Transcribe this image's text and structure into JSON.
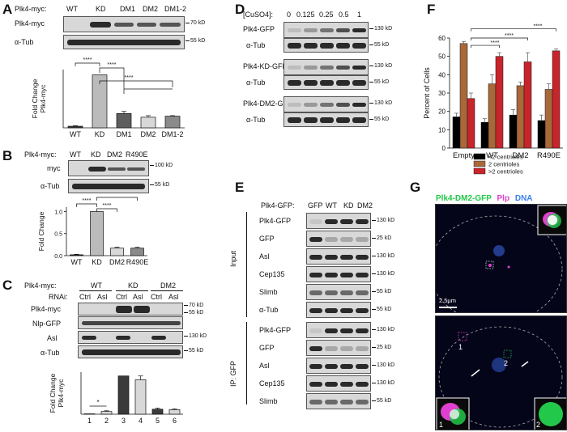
{
  "panelA": {
    "letter": "A",
    "header": "Plk4-myc:",
    "lanes": [
      "WT",
      "KD",
      "DM1",
      "DM2",
      "DM1-2"
    ],
    "rows": [
      {
        "label": "Plk4-myc",
        "mw": "70 kD"
      },
      {
        "label": "α-Tub",
        "mw": "55 kD"
      }
    ],
    "sig": [
      "****",
      "****",
      "****"
    ]
  },
  "panelB": {
    "letter": "B",
    "header": "Plk4-myc:",
    "lanes": [
      "WT",
      "KD",
      "DM2",
      "R490E"
    ],
    "rows": [
      {
        "label": "myc",
        "mw": "100 kD"
      },
      {
        "label": "α-Tub",
        "mw": "55 kD"
      }
    ],
    "sig": [
      "****",
      "***",
      "****"
    ]
  },
  "panelC": {
    "letter": "C",
    "header": "Plk4-myc:",
    "groups": [
      "WT",
      "KD",
      "DM2"
    ],
    "rnai_label": "RNAi:",
    "rnai": [
      "Ctrl",
      "Asl",
      "Ctrl",
      "Asl",
      "Ctrl",
      "Asl"
    ],
    "rows": [
      {
        "label": "Plk4-myc",
        "mw": "70 kD"
      },
      {
        "label": "Nlp-GFP",
        "mw": "55 kD"
      },
      {
        "label": "Asl",
        "mw": "130 kD"
      },
      {
        "label": "α-Tub",
        "mw": "55 kD"
      }
    ],
    "sig": [
      "*"
    ]
  },
  "panelD": {
    "letter": "D",
    "header": "[CuSO4]:",
    "conc": [
      "0",
      "0.125",
      "0.25",
      "0.5",
      "1"
    ],
    "rows": [
      {
        "label": "Plk4-GFP",
        "mw": "130 kD"
      },
      {
        "label": "α-Tub",
        "mw": "55 kD"
      },
      {
        "label": "Plk4-KD-GFP",
        "mw": "130 kD"
      },
      {
        "label": "α-Tub",
        "mw": "55 kD"
      },
      {
        "label": "Plk4-DM2-GFP",
        "mw": "130 kD"
      },
      {
        "label": "α-Tub",
        "mw": "55 kD"
      }
    ]
  },
  "panelE": {
    "letter": "E",
    "header": "Plk4-GFP:",
    "lanes": [
      "GFP",
      "WT",
      "KD",
      "DM2"
    ],
    "input_label": "Input",
    "ip_label": "IP: GFP",
    "input_rows": [
      {
        "label": "Plk4-GFP",
        "mw": "130 kD"
      },
      {
        "label": "GFP",
        "mw": "25 kD"
      },
      {
        "label": "Asl",
        "mw": "130 kD"
      },
      {
        "label": "Cep135",
        "mw": "130 kD"
      },
      {
        "label": "Slimb",
        "mw": "55 kD"
      },
      {
        "label": "α-Tub",
        "mw": "55 kD"
      }
    ],
    "ip_rows": [
      {
        "label": "Plk4-GFP",
        "mw": "130 kD"
      },
      {
        "label": "GFP",
        "mw": "25 kD"
      },
      {
        "label": "Asl",
        "mw": "130 kD"
      },
      {
        "label": "Cep135",
        "mw": "130 kD"
      },
      {
        "label": "Slimb",
        "mw": "55 kD"
      }
    ]
  },
  "panelF": {
    "letter": "F",
    "sig": [
      "****",
      "****",
      "****"
    ]
  },
  "panelG": {
    "letter": "G",
    "stain1": "Plk4-DM2-GFP",
    "stain2": "Plp",
    "stain3": "DNA",
    "scale": "2.5μm",
    "inset1": "1",
    "inset2": "2",
    "colors": {
      "green": "#22c84a",
      "magenta": "#e040d0",
      "blue": "#3a7ff0"
    }
  },
  "chart_data": [
    {
      "id": "A",
      "type": "bar",
      "ylabel": "Fold Change Plk4-myc",
      "categories": [
        "WT",
        "KD",
        "DM1",
        "DM2",
        "DM1-2"
      ],
      "values": [
        0.03,
        1.0,
        0.27,
        0.2,
        0.22
      ],
      "errors": [
        0.01,
        0.0,
        0.04,
        0.03,
        0.01
      ],
      "ylim": [
        0,
        1.1
      ],
      "colors": [
        "#3a3a3a",
        "#bbbbbb",
        "#5e5e5e",
        "#d8d8d8",
        "#8a8a8a"
      ]
    },
    {
      "id": "B",
      "type": "bar",
      "ylabel": "Fold Change",
      "categories": [
        "WT",
        "KD",
        "DM2",
        "R490E"
      ],
      "values": [
        0.02,
        1.0,
        0.17,
        0.17
      ],
      "errors": [
        0.01,
        0.0,
        0.02,
        0.02
      ],
      "ylim": [
        0,
        1.1
      ],
      "yticks": [
        0.0,
        0.5,
        1.0
      ],
      "ytick_labels": [
        "0.0",
        "0.5",
        "1.0"
      ],
      "colors": [
        "#3a3a3a",
        "#bbbbbb",
        "#d8d8d8",
        "#8a8a8a"
      ]
    },
    {
      "id": "C",
      "type": "bar",
      "ylabel": "Fold Change Plk4-myc",
      "categories": [
        "1",
        "2",
        "3",
        "4",
        "5",
        "6"
      ],
      "values": [
        0.01,
        0.07,
        1.0,
        0.9,
        0.13,
        0.12
      ],
      "errors": [
        0.0,
        0.02,
        0.0,
        0.1,
        0.03,
        0.02
      ],
      "ylim": [
        0,
        1.1
      ],
      "colors": [
        "#3a3a3a",
        "#d8d8d8",
        "#3a3a3a",
        "#d8d8d8",
        "#3a3a3a",
        "#d8d8d8"
      ]
    },
    {
      "id": "F",
      "type": "bar",
      "ylabel": "Percent of Cells",
      "categories": [
        "Empty",
        "WT",
        "DM2",
        "R490E"
      ],
      "series": [
        {
          "name": "<2 centrioles",
          "values": [
            17,
            14,
            18,
            15
          ],
          "errors": [
            2,
            2,
            3,
            3
          ],
          "color": "#000000"
        },
        {
          "name": "2 centrioles",
          "values": [
            57,
            35,
            34,
            32
          ],
          "errors": [
            1,
            5,
            2,
            3
          ],
          "color": "#a8683a"
        },
        {
          "name": ">2 centrioles",
          "values": [
            27,
            50,
            47,
            53
          ],
          "errors": [
            3,
            2,
            5,
            1
          ],
          "color": "#c8242c"
        }
      ],
      "ylim": [
        0,
        60
      ],
      "yticks": [
        0,
        10,
        20,
        30,
        40,
        50,
        60
      ],
      "ytick_labels": [
        "0",
        "10",
        "20",
        "30",
        "40",
        "50",
        "60"
      ],
      "legend": "bottom-right"
    }
  ]
}
